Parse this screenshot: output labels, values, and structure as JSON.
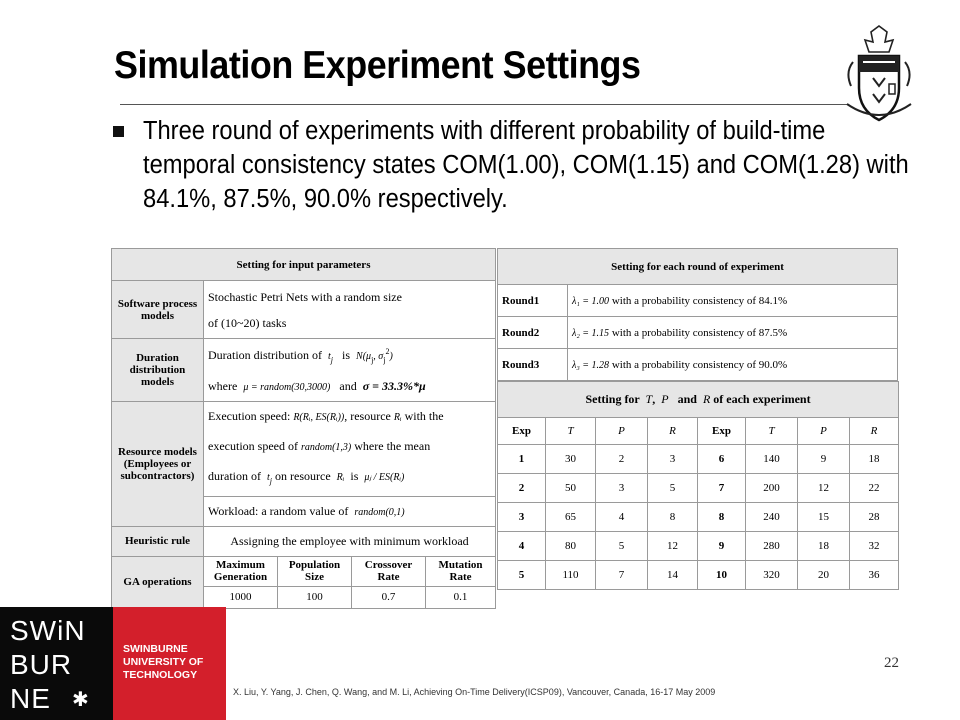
{
  "slide": {
    "title": "Simulation Experiment Settings",
    "bullet": "Three round of experiments with different probability of build-time temporal consistency states COM(1.00), COM(1.15) and COM(1.28) with 84.1%, 87.5%, 90.0% respectively.",
    "page_number": "22",
    "citation": "X. Liu, Y. Yang, J. Chen, Q. Wang, and M. Li, Achieving On-Time Delivery(ICSP09), Vancouver, Canada, 16-17 May 2009"
  },
  "logo": {
    "line1": "SWiN",
    "line2": "BUR",
    "line3": "NE",
    "name1": "SWINBURNE",
    "name2": "UNIVERSITY OF",
    "name3": "TECHNOLOGY"
  },
  "left_table": {
    "header": "Setting for input parameters",
    "software_label": "Software process models",
    "software_line1": "Stochastic Petri Nets with a random size",
    "software_line2": "of (10~20) tasks",
    "duration_label": "Duration distribution models",
    "duration_line1_prefix": "Duration distribution of",
    "duration_t": "t",
    "duration_is": "is",
    "duration_N": "N(μ",
    "duration_line2_prefix": "where",
    "duration_mu": "μ = random(30,3000)",
    "duration_and": "and",
    "duration_sigma": "σ = 33.3%*μ",
    "resource_label": "Resource models (Employees or subcontractors)",
    "resource_line1_prefix": "Execution speed:",
    "resource_speed": "R(Rᵢ, ES(Rᵢ))",
    "resource_line1_mid": ", resource",
    "resource_Ri": "Rᵢ",
    "resource_line1_suffix": "with the",
    "resource_line2_prefix": "execution speed of",
    "resource_random13": "random(1,3)",
    "resource_line2_suffix": "where the mean",
    "resource_line3_prefix": "duration of",
    "resource_line3_mid": "on resource",
    "resource_line3_is": "is",
    "resource_formula": "μⱼ / ES(Rᵢ)",
    "workload_prefix": "Workload: a random value of",
    "workload_random": "random(0,1)",
    "heuristic_label": "Heuristic rule",
    "heuristic_text": "Assigning the employee with minimum workload",
    "ga_label": "GA operations",
    "ga_headers": [
      "Maximum Generation",
      "Population Size",
      "Crossover Rate",
      "Mutation Rate"
    ],
    "ga_values": [
      "1000",
      "100",
      "0.7",
      "0.1"
    ]
  },
  "right_table": {
    "header": "Setting for each round of experiment",
    "rounds": [
      {
        "label": "Round1",
        "lambda": "λ₁ = 1.00",
        "text": "with a probability consistency of 84.1%"
      },
      {
        "label": "Round2",
        "lambda": "λ₂ = 1.15",
        "text": "with a probability consistency of 87.5%"
      },
      {
        "label": "Round3",
        "lambda": "λ₃ = 1.28",
        "text": "with a probability consistency of 90.0%"
      }
    ],
    "exp_header_prefix": "Setting for",
    "exp_header_T": "T",
    "exp_header_comma": ",",
    "exp_header_P": "P",
    "exp_header_and": "and",
    "exp_header_R": "R",
    "exp_header_suffix": "of each experiment",
    "columns": [
      "Exp",
      "T",
      "P",
      "R",
      "Exp",
      "T",
      "P",
      "R"
    ],
    "rows": [
      [
        "1",
        "30",
        "2",
        "3",
        "6",
        "140",
        "9",
        "18"
      ],
      [
        "2",
        "50",
        "3",
        "5",
        "7",
        "200",
        "12",
        "22"
      ],
      [
        "3",
        "65",
        "4",
        "8",
        "8",
        "240",
        "15",
        "28"
      ],
      [
        "4",
        "80",
        "5",
        "12",
        "9",
        "280",
        "18",
        "32"
      ],
      [
        "5",
        "110",
        "7",
        "14",
        "10",
        "320",
        "20",
        "36"
      ]
    ]
  }
}
